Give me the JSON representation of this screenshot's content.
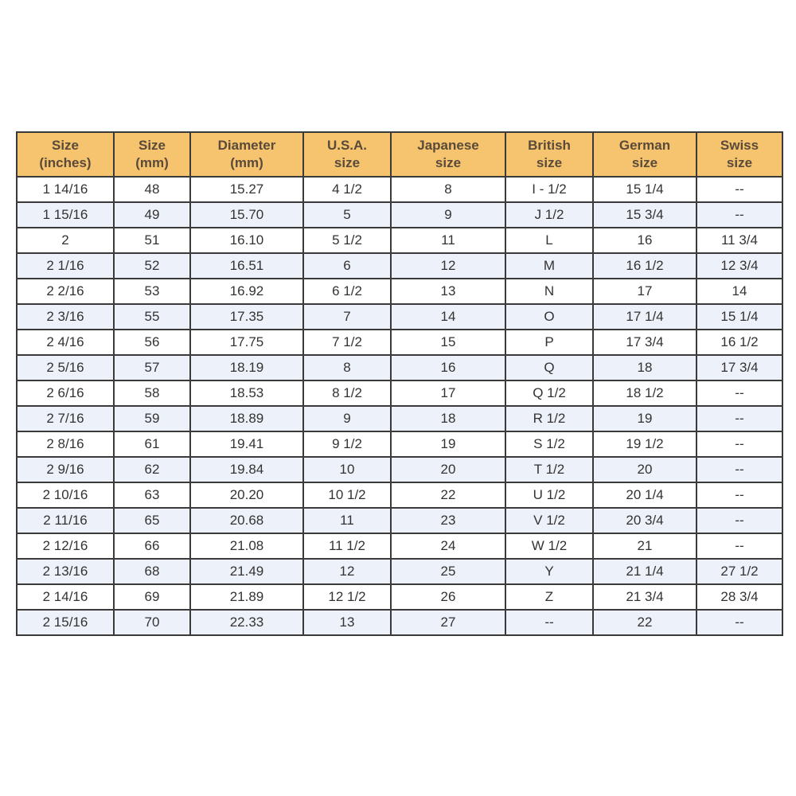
{
  "table": {
    "headers": [
      [
        "Size",
        "(inches)"
      ],
      [
        "Size",
        "(mm)"
      ],
      [
        "Diameter",
        "(mm)"
      ],
      [
        "U.S.A.",
        "size"
      ],
      [
        "Japanese",
        "size"
      ],
      [
        "British",
        "size"
      ],
      [
        "German",
        "size"
      ],
      [
        "Swiss",
        "size"
      ]
    ],
    "rows": [
      [
        "1 14/16",
        "48",
        "15.27",
        "4 1/2",
        "8",
        "I - 1/2",
        "15 1/4",
        "--"
      ],
      [
        "1 15/16",
        "49",
        "15.70",
        "5",
        "9",
        "J 1/2",
        "15 3/4",
        "--"
      ],
      [
        "2",
        "51",
        "16.10",
        "5 1/2",
        "11",
        "L",
        "16",
        "11 3/4"
      ],
      [
        "2 1/16",
        "52",
        "16.51",
        "6",
        "12",
        "M",
        "16 1/2",
        "12 3/4"
      ],
      [
        "2 2/16",
        "53",
        "16.92",
        "6 1/2",
        "13",
        "N",
        "17",
        "14"
      ],
      [
        "2 3/16",
        "55",
        "17.35",
        "7",
        "14",
        "O",
        "17 1/4",
        "15 1/4"
      ],
      [
        "2 4/16",
        "56",
        "17.75",
        "7 1/2",
        "15",
        "P",
        "17 3/4",
        "16 1/2"
      ],
      [
        "2 5/16",
        "57",
        "18.19",
        "8",
        "16",
        "Q",
        "18",
        "17 3/4"
      ],
      [
        "2 6/16",
        "58",
        "18.53",
        "8 1/2",
        "17",
        "Q 1/2",
        "18 1/2",
        "--"
      ],
      [
        "2 7/16",
        "59",
        "18.89",
        "9",
        "18",
        "R 1/2",
        "19",
        "--"
      ],
      [
        "2 8/16",
        "61",
        "19.41",
        "9 1/2",
        "19",
        "S 1/2",
        "19 1/2",
        "--"
      ],
      [
        "2 9/16",
        "62",
        "19.84",
        "10",
        "20",
        "T 1/2",
        "20",
        "--"
      ],
      [
        "2 10/16",
        "63",
        "20.20",
        "10 1/2",
        "22",
        "U 1/2",
        "20 1/4",
        "--"
      ],
      [
        "2 11/16",
        "65",
        "20.68",
        "11",
        "23",
        "V 1/2",
        "20 3/4",
        "--"
      ],
      [
        "2 12/16",
        "66",
        "21.08",
        "11 1/2",
        "24",
        "W 1/2",
        "21",
        "--"
      ],
      [
        "2 13/16",
        "68",
        "21.49",
        "12",
        "25",
        "Y",
        "21 1/4",
        "27 1/2"
      ],
      [
        "2 14/16",
        "69",
        "21.89",
        "12 1/2",
        "26",
        "Z",
        "21 3/4",
        "28 3/4"
      ],
      [
        "2 15/16",
        "70",
        "22.33",
        "13",
        "27",
        "--",
        "22",
        "--"
      ]
    ]
  },
  "colors": {
    "header_bg": "#f6c46e",
    "stripe_bg": "#edf1f9",
    "border": "#3a3a3a"
  }
}
